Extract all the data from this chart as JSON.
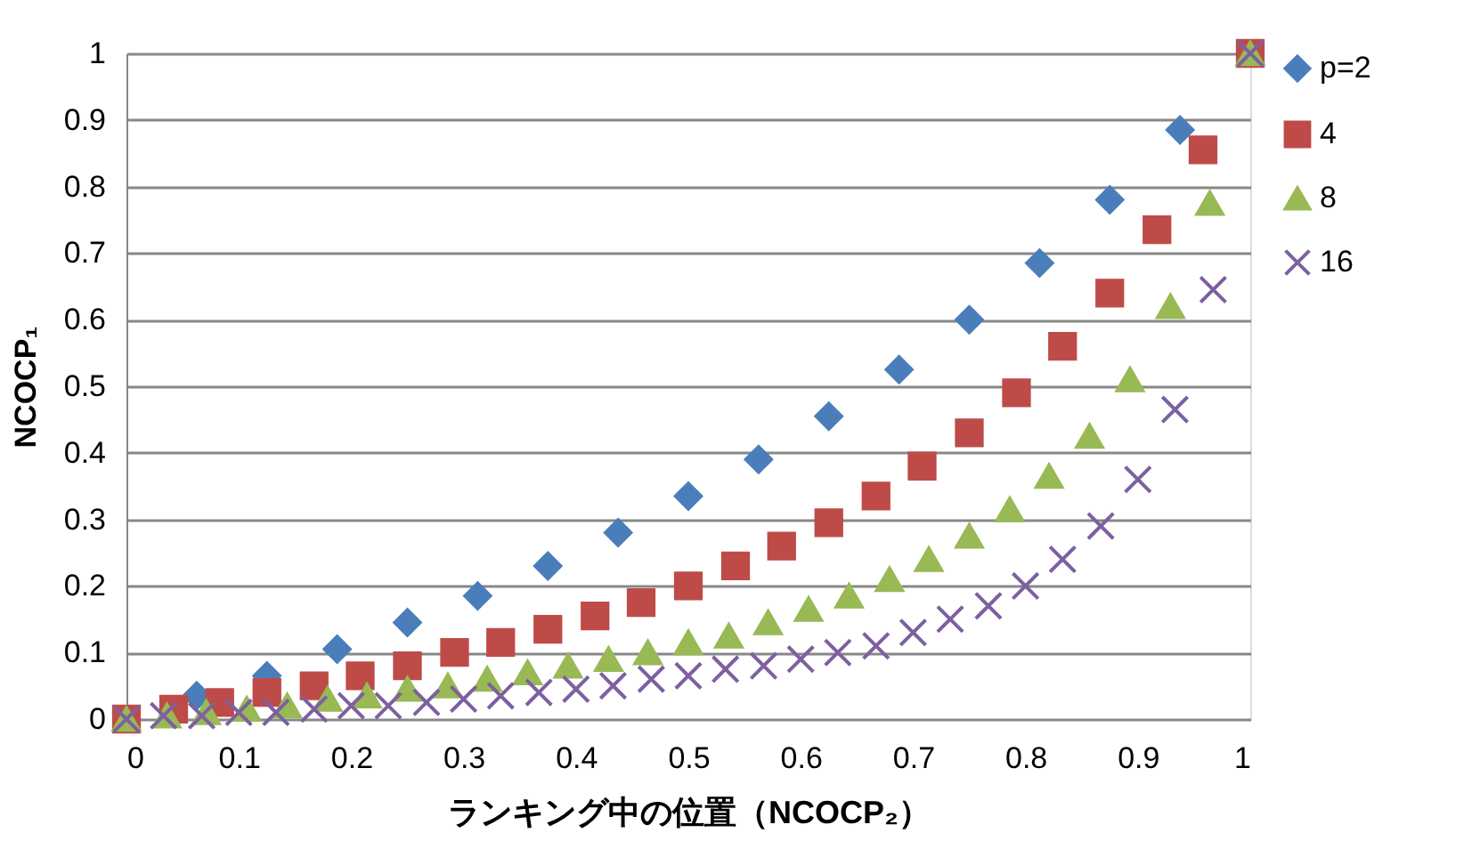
{
  "chart_data": {
    "type": "scatter",
    "xlabel": "ランキング中の位置（NCOCP₂）",
    "ylabel": "NCOCP₁",
    "xlim": [
      0,
      1
    ],
    "xticks": [
      0,
      0.1,
      0.2,
      0.3,
      0.4,
      0.5,
      0.6,
      0.7,
      0.8,
      0.9,
      1
    ],
    "ylim": [
      0,
      1
    ],
    "yticks": [
      0,
      0.1,
      0.2,
      0.3,
      0.4,
      0.5,
      0.6,
      0.7,
      0.8,
      0.9,
      1
    ],
    "grid": "y",
    "legend": "right",
    "series": [
      {
        "name": "p=2",
        "color": "#4a7ebb",
        "marker": "diamond",
        "x": [
          0.0625,
          0.125,
          0.1875,
          0.25,
          0.3125,
          0.375,
          0.4375,
          0.5,
          0.5625,
          0.625,
          0.6875,
          0.75,
          0.8125,
          0.875,
          0.9375
        ],
        "values": [
          0.035,
          0.065,
          0.105,
          0.145,
          0.185,
          0.23,
          0.28,
          0.335,
          0.39,
          0.455,
          0.525,
          0.6,
          0.685,
          0.78,
          0.885
        ]
      },
      {
        "name": "4",
        "color": "#be4b48",
        "marker": "square",
        "x": [
          0,
          0.042,
          0.083,
          0.125,
          0.167,
          0.208,
          0.25,
          0.292,
          0.333,
          0.375,
          0.417,
          0.458,
          0.5,
          0.542,
          0.583,
          0.625,
          0.667,
          0.708,
          0.75,
          0.792,
          0.833,
          0.875,
          0.917,
          0.958,
          1
        ],
        "values": [
          0,
          0.015,
          0.025,
          0.04,
          0.05,
          0.065,
          0.08,
          0.1,
          0.115,
          0.135,
          0.155,
          0.175,
          0.2,
          0.23,
          0.26,
          0.295,
          0.335,
          0.38,
          0.43,
          0.49,
          0.56,
          0.64,
          0.735,
          0.855,
          1
        ]
      },
      {
        "name": "8",
        "color": "#98b954",
        "marker": "triangle",
        "x": [
          0,
          0.036,
          0.071,
          0.107,
          0.143,
          0.179,
          0.214,
          0.25,
          0.286,
          0.321,
          0.357,
          0.393,
          0.429,
          0.464,
          0.5,
          0.536,
          0.571,
          0.607,
          0.643,
          0.679,
          0.714,
          0.75,
          0.786,
          0.821,
          0.857,
          0.893,
          0.929,
          0.964,
          1
        ],
        "values": [
          0,
          0.005,
          0.01,
          0.015,
          0.02,
          0.03,
          0.035,
          0.045,
          0.05,
          0.06,
          0.07,
          0.08,
          0.09,
          0.1,
          0.115,
          0.125,
          0.145,
          0.165,
          0.185,
          0.21,
          0.24,
          0.275,
          0.315,
          0.365,
          0.425,
          0.51,
          0.62,
          0.775,
          1
        ]
      },
      {
        "name": "16",
        "color": "#7d60a0",
        "marker": "cross",
        "x": [
          0,
          0.033,
          0.067,
          0.1,
          0.133,
          0.167,
          0.2,
          0.233,
          0.267,
          0.3,
          0.333,
          0.367,
          0.4,
          0.433,
          0.467,
          0.5,
          0.533,
          0.567,
          0.6,
          0.633,
          0.667,
          0.7,
          0.733,
          0.767,
          0.8,
          0.833,
          0.867,
          0.9,
          0.933,
          0.967,
          1
        ],
        "values": [
          0,
          0.005,
          0.005,
          0.01,
          0.01,
          0.015,
          0.02,
          0.02,
          0.025,
          0.03,
          0.035,
          0.04,
          0.045,
          0.05,
          0.06,
          0.065,
          0.075,
          0.08,
          0.09,
          0.1,
          0.11,
          0.13,
          0.15,
          0.17,
          0.2,
          0.24,
          0.29,
          0.36,
          0.465,
          0.645,
          1
        ]
      }
    ]
  }
}
